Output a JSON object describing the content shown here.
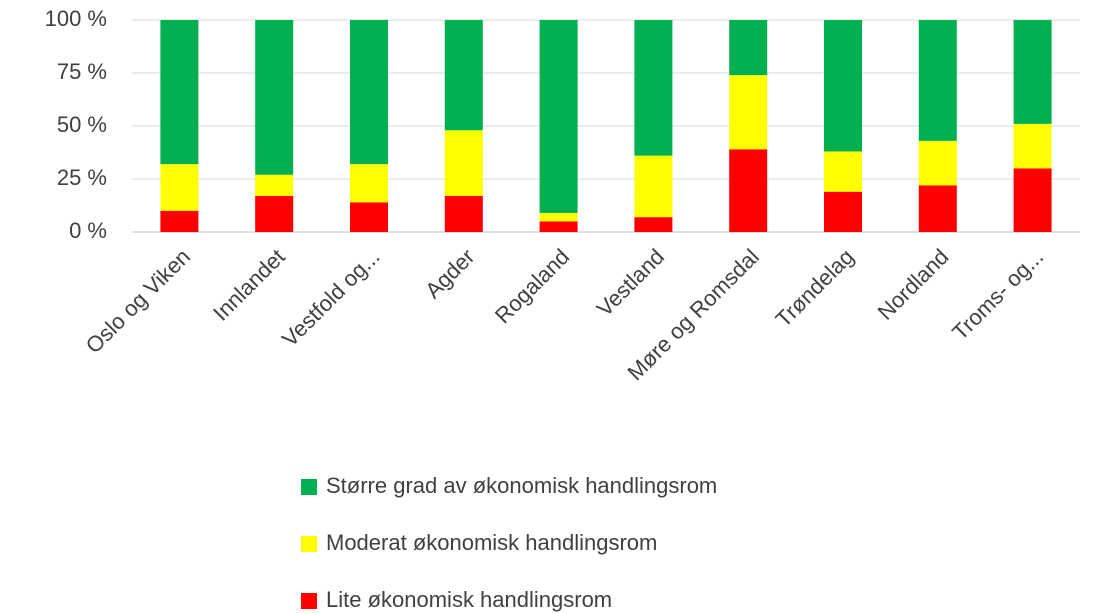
{
  "chart_data": {
    "type": "stacked_bar",
    "categories": [
      "Oslo og Viken",
      "Innlandet",
      "Vestfold og...",
      "Agder",
      "Rogaland",
      "Vestland",
      "Møre og Romsdal",
      "Trøndelag",
      "Nordland",
      "Troms- og..."
    ],
    "series": [
      {
        "name": "Større grad av økonomisk handlingsrom",
        "color": "#00b050",
        "values": [
          68,
          73,
          68,
          52,
          91,
          64,
          26,
          62,
          57,
          49
        ]
      },
      {
        "name": "Moderat økonomisk handlingsrom",
        "color": "#ffff00",
        "values": [
          22,
          10,
          18,
          31,
          4,
          29,
          35,
          19,
          21,
          21
        ]
      },
      {
        "name": "Lite økonomisk handlingsrom",
        "color": "#ff0000",
        "values": [
          10,
          17,
          14,
          17,
          5,
          7,
          39,
          19,
          22,
          30
        ]
      }
    ],
    "ylim": [
      0,
      100
    ],
    "yticks": [
      {
        "value": 0,
        "label": "0 %"
      },
      {
        "value": 25,
        "label": "25 %"
      },
      {
        "value": 50,
        "label": "50 %"
      },
      {
        "value": 75,
        "label": "75 %"
      },
      {
        "value": 100,
        "label": "100 %"
      }
    ],
    "grid": true,
    "legend": "bottom"
  }
}
